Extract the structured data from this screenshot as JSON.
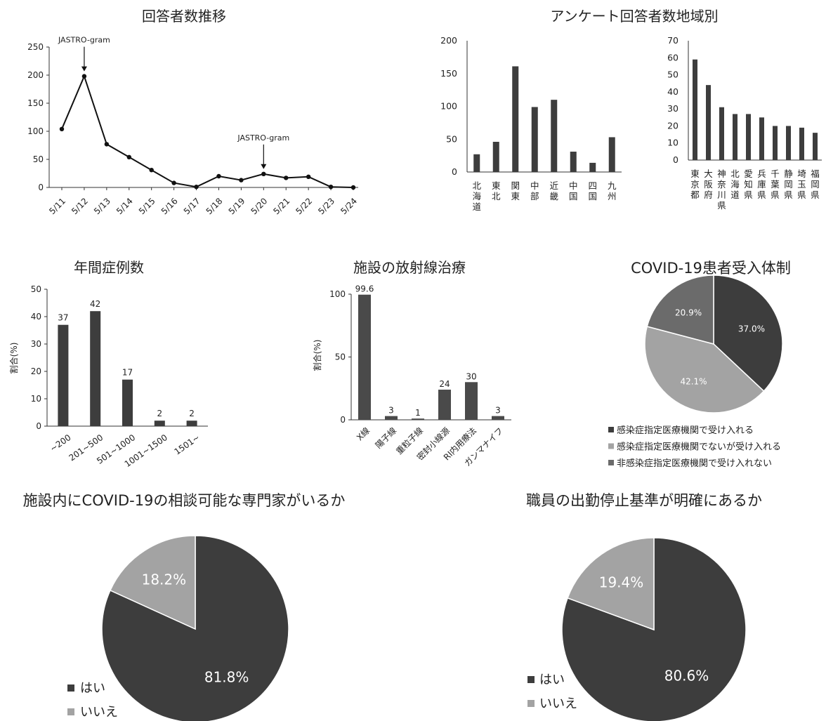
{
  "chart_data": [
    {
      "id": "trend",
      "type": "line",
      "title": "回答者数推移",
      "categories": [
        "5/11",
        "5/12",
        "5/13",
        "5/14",
        "5/15",
        "5/16",
        "5/17",
        "5/18",
        "5/19",
        "5/20",
        "5/21",
        "5/22",
        "5/23",
        "5/24"
      ],
      "values": [
        104,
        198,
        77,
        54,
        31,
        8,
        1,
        20,
        13,
        24,
        17,
        19,
        1,
        0
      ],
      "ylim": [
        0,
        250
      ],
      "yticks": [
        "0",
        "50",
        "100",
        "150",
        "200",
        "250"
      ],
      "annotations": [
        {
          "text": "JASTRO-gram",
          "category": "5/12"
        },
        {
          "text": "JASTRO-gram",
          "category": "5/20"
        }
      ],
      "grid": false
    },
    {
      "id": "region",
      "type": "bar",
      "title": "アンケート回答者数地域別",
      "categories": [
        "北海道",
        "東北",
        "関東",
        "中部",
        "近畿",
        "中国",
        "四国",
        "九州"
      ],
      "values": [
        27,
        46,
        161,
        99,
        110,
        31,
        14,
        53
      ],
      "ylim": [
        0,
        200
      ],
      "yticks": [
        "0",
        "50",
        "100",
        "150",
        "200"
      ]
    },
    {
      "id": "pref",
      "type": "bar",
      "title": "",
      "categories": [
        "東京都",
        "大阪府",
        "神奈川県",
        "北海道",
        "愛知県",
        "兵庫県",
        "千葉県",
        "静岡県",
        "埼玉県",
        "福岡県"
      ],
      "values": [
        59,
        44,
        31,
        27,
        27,
        25,
        20,
        20,
        19,
        16
      ],
      "ylim": [
        0,
        70
      ],
      "yticks": [
        "0",
        "10",
        "20",
        "30",
        "40",
        "50",
        "60",
        "70"
      ]
    },
    {
      "id": "cases",
      "type": "bar",
      "title": "年間症例数",
      "ylabel": "割合(%)",
      "categories": [
        "~200",
        "201~500",
        "501~1000",
        "1001~1500",
        "1501~"
      ],
      "values": [
        37,
        42,
        17,
        2,
        2
      ],
      "value_labels": [
        "37",
        "42",
        "17",
        "2",
        "2"
      ],
      "ylim": [
        0,
        50
      ],
      "yticks": [
        "0",
        "10",
        "20",
        "30",
        "40",
        "50"
      ]
    },
    {
      "id": "facility",
      "type": "bar",
      "title": "施設の放射線治療",
      "ylabel": "割合(%)",
      "categories": [
        "X線",
        "陽子線",
        "重粒子線",
        "密封小線源",
        "RI内用療法",
        "ガンマナイフ"
      ],
      "values": [
        99.6,
        3,
        1,
        24,
        30,
        3
      ],
      "value_labels": [
        "99.6",
        "3",
        "1",
        "24",
        "30",
        "3"
      ],
      "ylim": [
        0,
        100
      ],
      "yticks": [
        "0",
        "50",
        "100"
      ]
    },
    {
      "id": "covid_accept",
      "type": "pie",
      "title": "COVID-19患者受入体制",
      "labels": [
        "感染症指定医療機関で受け入れる",
        "感染症指定医療機関でないが受け入れる",
        "非感染症指定医療機関で受け入れない"
      ],
      "values": [
        37.0,
        42.1,
        20.9
      ],
      "value_labels": [
        "37.0%",
        "42.1%",
        "20.9%"
      ],
      "colors": [
        "#3d3d3d",
        "#a3a3a3",
        "#6b6b6b"
      ],
      "legend": "bottom"
    },
    {
      "id": "expert",
      "type": "pie",
      "title": "施設内にCOVID-19の相談可能な専門家がいるか",
      "labels": [
        "はい",
        "いいえ"
      ],
      "values": [
        81.8,
        18.2
      ],
      "value_labels": [
        "81.8%",
        "18.2%"
      ],
      "colors": [
        "#3d3d3d",
        "#a3a3a3"
      ],
      "legend": "bottom-left"
    },
    {
      "id": "staff",
      "type": "pie",
      "title": "職員の出勤停止基準が明確にあるか",
      "labels": [
        "はい",
        "いいえ"
      ],
      "values": [
        80.6,
        19.4
      ],
      "value_labels": [
        "80.6%",
        "19.4%"
      ],
      "colors": [
        "#3d3d3d",
        "#a3a3a3"
      ],
      "legend": "bottom-left"
    }
  ]
}
